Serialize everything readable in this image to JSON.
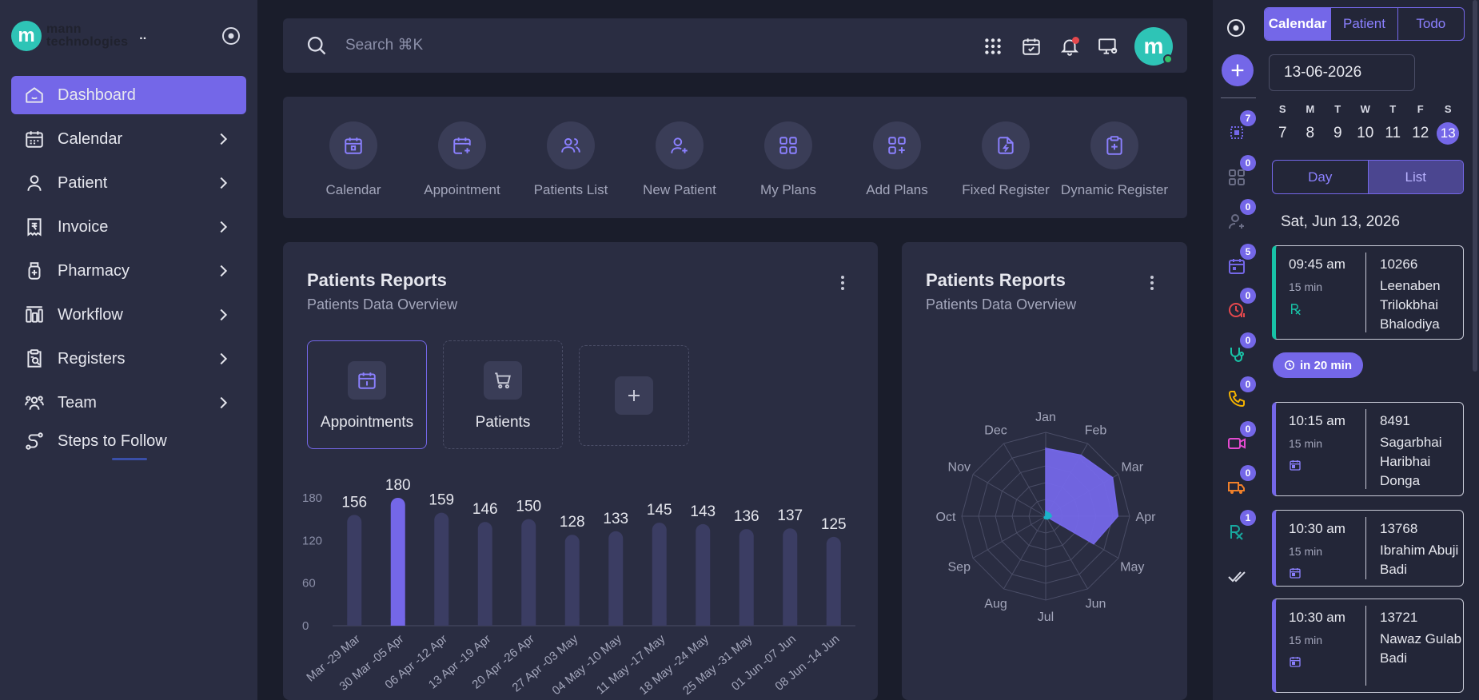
{
  "brand": {
    "logo_letter": "m",
    "name_line1": "mann",
    "name_line2": "technologies",
    "menu_dots": ".."
  },
  "sidebar": {
    "items": [
      {
        "label": "Dashboard",
        "icon": "home-icon",
        "active": true
      },
      {
        "label": "Calendar",
        "icon": "calendar-icon"
      },
      {
        "label": "Patient",
        "icon": "user-icon"
      },
      {
        "label": "Invoice",
        "icon": "invoice-icon"
      },
      {
        "label": "Pharmacy",
        "icon": "medicine-icon"
      },
      {
        "label": "Workflow",
        "icon": "workflow-icon"
      },
      {
        "label": "Registers",
        "icon": "register-icon"
      },
      {
        "label": "Team",
        "icon": "team-icon"
      },
      {
        "label": "Steps to Follow",
        "icon": "steps-icon"
      }
    ]
  },
  "search": {
    "placeholder": "Search ⌘K"
  },
  "header": {
    "avatar_letter": "m"
  },
  "quick_actions": [
    {
      "label": "Calendar",
      "icon": "calendar-icon"
    },
    {
      "label": "Appointment",
      "icon": "calendar-plus-icon"
    },
    {
      "label": "Patients List",
      "icon": "users-icon"
    },
    {
      "label": "New Patient",
      "icon": "user-plus-icon"
    },
    {
      "label": "My Plans",
      "icon": "grid-icon"
    },
    {
      "label": "Add Plans",
      "icon": "grid-plus-icon"
    },
    {
      "label": "Fixed Register",
      "icon": "file-bolt-icon"
    },
    {
      "label": "Dynamic Register",
      "icon": "clipboard-plus-icon"
    }
  ],
  "report_card_1": {
    "title": "Patients Reports",
    "subtitle": "Patients Data Overview",
    "tiles": [
      {
        "label": "Appointments",
        "icon": "calendar-icon",
        "selected": true
      },
      {
        "label": "Patients",
        "icon": "cart-icon",
        "selected": false
      }
    ]
  },
  "report_card_2": {
    "title": "Patients Reports",
    "subtitle": "Patients Data Overview"
  },
  "chart_data": [
    {
      "type": "bar",
      "title": "",
      "categories": [
        "Mar -29 Mar",
        "30 Mar -05 Apr",
        "06 Apr -12 Apr",
        "13 Apr -19 Apr",
        "20 Apr -26 Apr",
        "27 Apr -03 May",
        "04 May -10 May",
        "11 May -17 May",
        "18 May -24 May",
        "25 May -31 May",
        "01 Jun -07 Jun",
        "08 Jun -14 Jun"
      ],
      "values": [
        156,
        180,
        159,
        146,
        150,
        128,
        133,
        145,
        143,
        136,
        137,
        125
      ],
      "highlight_index": 1,
      "yticks": [
        0,
        60,
        120,
        180
      ],
      "ylim": [
        0,
        180
      ],
      "bar_color": "#3b3d63",
      "highlight_color": "#7467e8",
      "grid": false
    },
    {
      "type": "radar",
      "title": "",
      "categories": [
        "Jan",
        "Feb",
        "Mar",
        "Apr",
        "May",
        "Jun",
        "Jul",
        "Aug",
        "Sep",
        "Oct",
        "Nov",
        "Dec"
      ],
      "series": [
        {
          "values": [
            0.81,
            0.84,
            0.92,
            0.86,
            0.66,
            0,
            0,
            0,
            0,
            0,
            0,
            0
          ],
          "color": "#7467e8"
        },
        {
          "values": [
            0.06,
            0.05,
            0.06,
            0.07,
            0.05,
            0.04,
            0.03,
            0.03,
            0.02,
            0,
            0,
            0
          ],
          "color": "#18b6c9"
        }
      ],
      "scale": "0-1 of max",
      "grid": true
    }
  ],
  "right_strip": {
    "items": [
      {
        "icon": "dotted-square-icon",
        "badge": "7",
        "color": "#7467e8"
      },
      {
        "icon": "apps-icon",
        "badge": "0",
        "color": "#6a6d85"
      },
      {
        "icon": "user-plus-icon",
        "badge": "0",
        "color": "#6a6d85"
      },
      {
        "icon": "calendar-check-icon",
        "badge": "5",
        "color": "#7467e8"
      },
      {
        "icon": "clock-pause-icon",
        "badge": "0",
        "color": "#e5484d"
      },
      {
        "icon": "stethoscope-icon",
        "badge": "0",
        "color": "#18c3a7"
      },
      {
        "icon": "phone-icon",
        "badge": "0",
        "color": "#f5b300"
      },
      {
        "icon": "video-icon",
        "badge": "0",
        "color": "#e44ad0"
      },
      {
        "icon": "truck-icon",
        "badge": "0",
        "color": "#f0802a"
      },
      {
        "icon": "rx-icon",
        "badge": "1",
        "color": "#18a9a0"
      },
      {
        "icon": "double-check-icon",
        "badge": null,
        "color": "#d9dbe6"
      }
    ]
  },
  "calendar_panel": {
    "tabs": [
      "Calendar",
      "Patient",
      "Todo"
    ],
    "active_tab": 0,
    "date_value": "13-06-2026",
    "weekdays": [
      "S",
      "M",
      "T",
      "W",
      "T",
      "F",
      "S"
    ],
    "days": [
      "7",
      "8",
      "9",
      "10",
      "11",
      "12",
      "13"
    ],
    "today_index": 6,
    "view_tabs": [
      "Day",
      "List"
    ],
    "active_view": 1,
    "date_heading": "Sat, Jun 13, 2026",
    "in_label": "in 20 min",
    "appointments": [
      {
        "time": "09:45 am",
        "duration": "15 min",
        "id": "10266",
        "name": "Leenaben Trilokbhai Bhalodiya",
        "type": "rx",
        "accent": "teal"
      },
      {
        "time": "10:15 am",
        "duration": "15 min",
        "id": "8491",
        "name": "Sagarbhai Haribhai Donga",
        "type": "calendar",
        "accent": "purple"
      },
      {
        "time": "10:30 am",
        "duration": "15 min",
        "id": "13768",
        "name": "Ibrahim Abuji Badi",
        "type": "calendar",
        "accent": "purple"
      },
      {
        "time": "10:30 am",
        "duration": "15 min",
        "id": "13721",
        "name": "Nawaz Gulab Badi",
        "type": "calendar",
        "accent": "purple"
      }
    ]
  }
}
